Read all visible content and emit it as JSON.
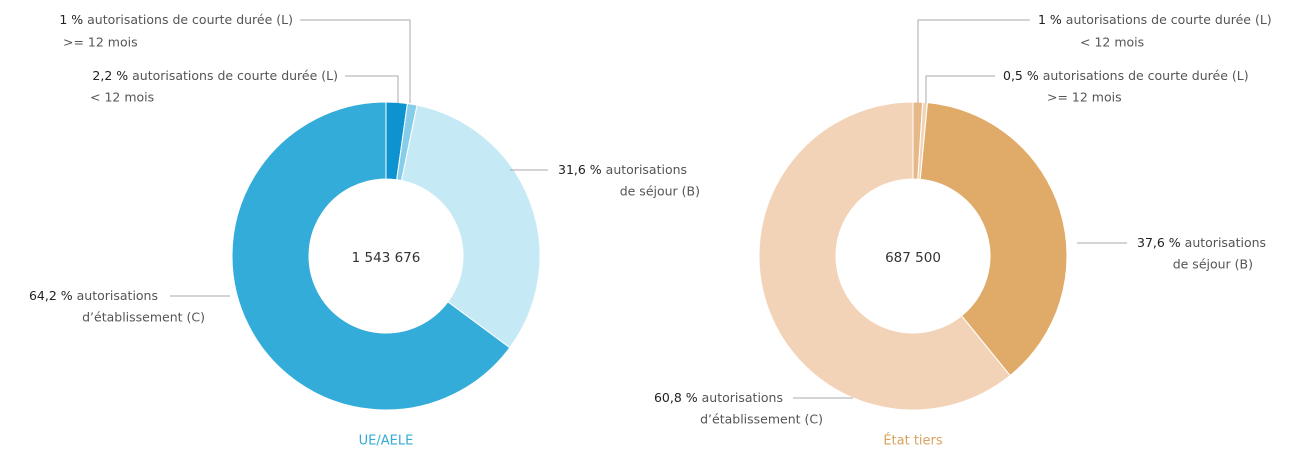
{
  "chart_data": [
    {
      "type": "pie",
      "title": "UE/AELE",
      "center_label": "1 543 676",
      "title_color": "#33acd9",
      "categories": [
        [
          "autorisations de courte durée (L)",
          "< 12 mois"
        ],
        [
          "autorisations de courte durée (L)",
          ">= 12 mois"
        ],
        [
          "autorisations",
          "de séjour (B)"
        ],
        [
          "autorisations",
          "d’établissement (C)"
        ]
      ],
      "values": [
        2.2,
        1,
        31.6,
        64.2
      ],
      "value_labels": [
        "2,2 %",
        "1 %",
        "31,6 %",
        "64,2 %"
      ],
      "colors": [
        "#0d93cf",
        "#86cdea",
        "#c6e9f6",
        "#33acd9"
      ]
    },
    {
      "type": "pie",
      "title": "État tiers",
      "center_label": "687 500",
      "title_color": "#d9a25e",
      "categories": [
        [
          "autorisations de courte durée (L)",
          "< 12 mois"
        ],
        [
          "autorisations de courte durée (L)",
          ">= 12 mois"
        ],
        [
          "autorisations",
          "de séjour (B)"
        ],
        [
          "autorisations",
          "d’établissement (C)"
        ]
      ],
      "values": [
        1,
        0.5,
        37.6,
        60.8
      ],
      "value_labels": [
        "1 %",
        "0,5 %",
        "37,6 %",
        "60,8 %"
      ],
      "colors": [
        "#e6b888",
        "#f1d5b8",
        "#e0aa68",
        "#f3d3b8"
      ]
    }
  ]
}
